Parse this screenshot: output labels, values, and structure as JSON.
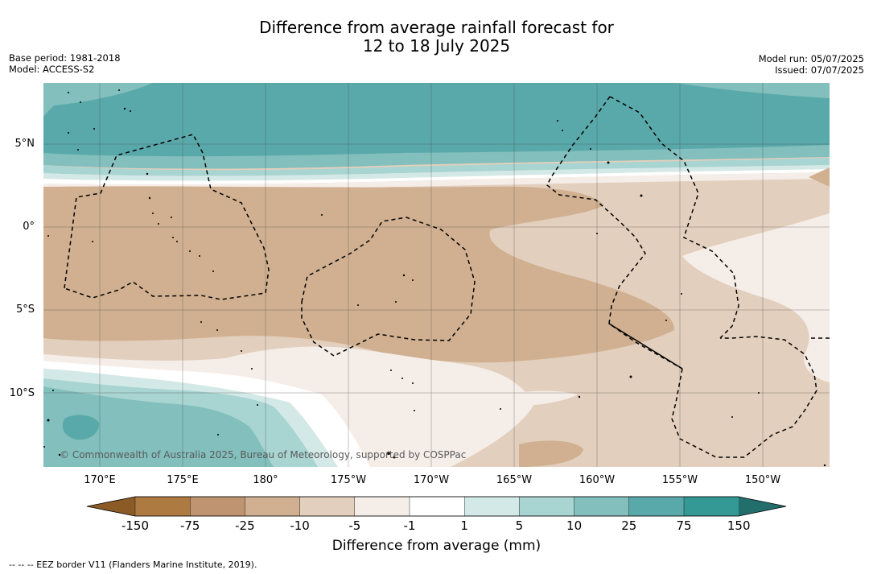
{
  "title": {
    "line1": "Difference from average rainfall forecast for",
    "line2": "12 to 18 July 2025"
  },
  "meta": {
    "base_period": "Base period: 1981-2018",
    "model": "Model: ACCESS-S2",
    "model_run": "Model run: 05/07/2025",
    "issued": "Issued: 07/07/2025"
  },
  "axes": {
    "lon": [
      "170°E",
      "175°E",
      "180°",
      "175°W",
      "170°W",
      "165°W",
      "160°W",
      "155°W",
      "150°W"
    ],
    "lat": [
      "5°N",
      "0°",
      "5°S",
      "10°S"
    ]
  },
  "copyright": "© Commonwealth of Australia 2025, Bureau of Meteorology, supported by COSPPac",
  "colorbar": {
    "title": "Difference from average (mm)",
    "ticks": [
      "-150",
      "-75",
      "-25",
      "-10",
      "-5",
      "-1",
      "1",
      "5",
      "10",
      "25",
      "75",
      "150"
    ],
    "colors": [
      "#8c5a25",
      "#ad7a42",
      "#bf9470",
      "#d0b090",
      "#e3cfbd",
      "#f5ede8",
      "#ffffff",
      "#d3e9e7",
      "#a8d4d1",
      "#82bfbd",
      "#5aa9aa",
      "#349894",
      "#226e6c"
    ]
  },
  "legend_note": "--  --  -- EEZ border V11 (Flanders Marine Institute, 2019)."
}
